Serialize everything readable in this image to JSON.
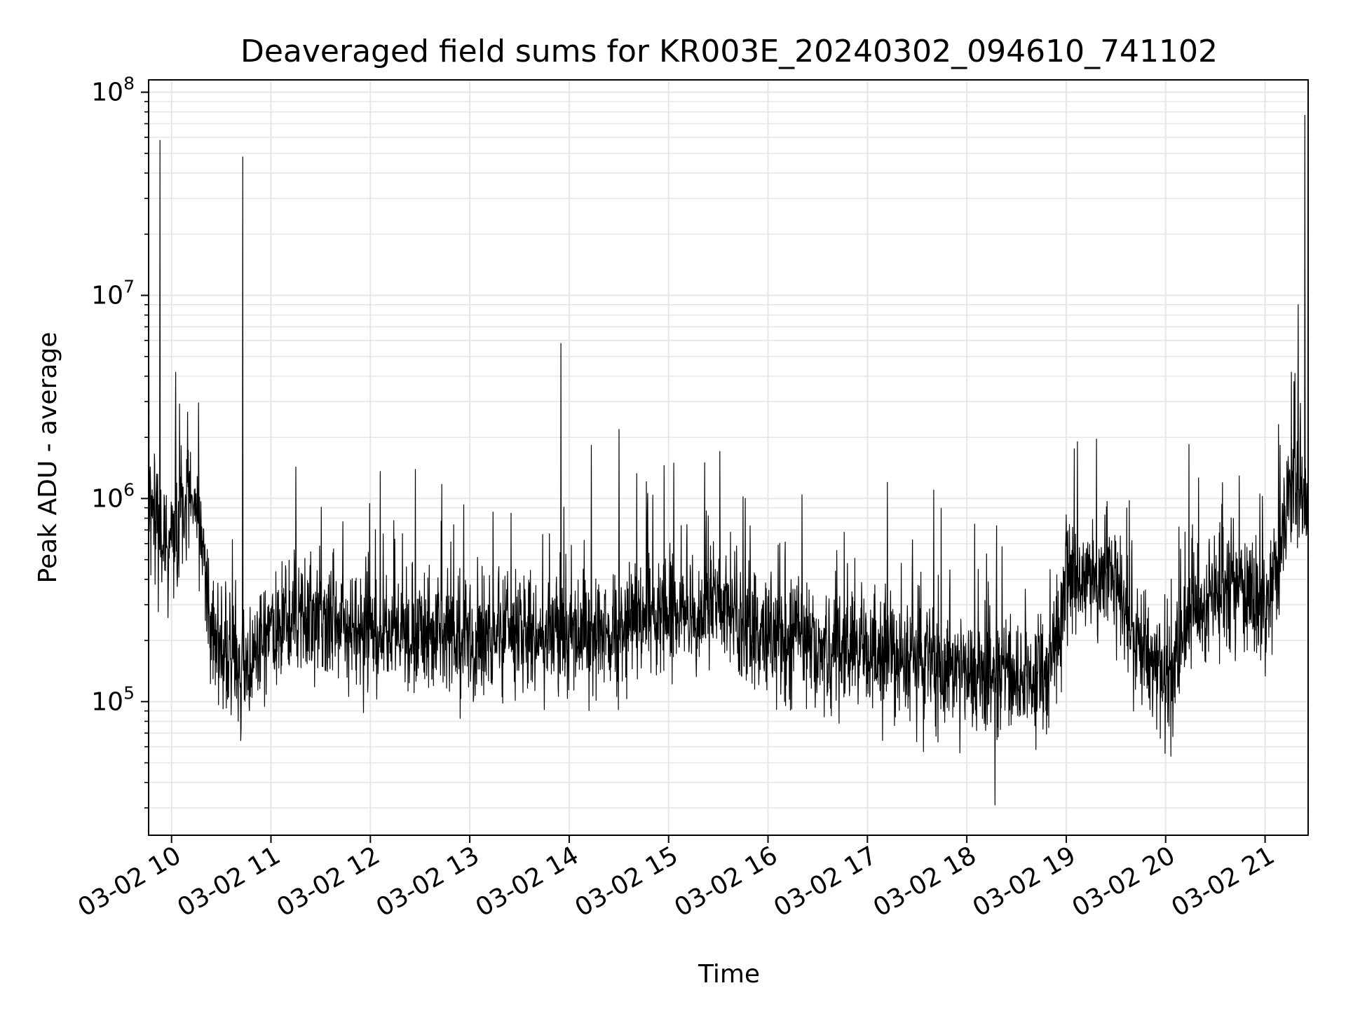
{
  "chart_data": {
    "type": "line",
    "title": "Deaveraged field sums for KR003E_20240302_094610_741102",
    "xlabel": "Time",
    "ylabel": "Peak ADU - average",
    "yscale": "log",
    "ylim": [
      22000,
      115000000
    ],
    "xlim": [
      "2024-03-02T09:46:10",
      "2024-03-02T21:26:00"
    ],
    "grid": true,
    "color": "#000000",
    "y_ticks": [
      {
        "value": 100000,
        "base": "10",
        "exp": "5"
      },
      {
        "value": 1000000,
        "base": "10",
        "exp": "6"
      },
      {
        "value": 10000000,
        "base": "10",
        "exp": "7"
      },
      {
        "value": 100000000,
        "base": "10",
        "exp": "8"
      }
    ],
    "x_ticks": [
      {
        "value": "2024-03-02T10:00:00",
        "label": "03-02 10"
      },
      {
        "value": "2024-03-02T11:00:00",
        "label": "03-02 11"
      },
      {
        "value": "2024-03-02T12:00:00",
        "label": "03-02 12"
      },
      {
        "value": "2024-03-02T13:00:00",
        "label": "03-02 13"
      },
      {
        "value": "2024-03-02T14:00:00",
        "label": "03-02 14"
      },
      {
        "value": "2024-03-02T15:00:00",
        "label": "03-02 15"
      },
      {
        "value": "2024-03-02T16:00:00",
        "label": "03-02 16"
      },
      {
        "value": "2024-03-02T17:00:00",
        "label": "03-02 17"
      },
      {
        "value": "2024-03-02T18:00:00",
        "label": "03-02 18"
      },
      {
        "value": "2024-03-02T19:00:00",
        "label": "03-02 19"
      },
      {
        "value": "2024-03-02T20:00:00",
        "label": "03-02 20"
      },
      {
        "value": "2024-03-02T21:00:00",
        "label": "03-02 21"
      }
    ],
    "baseline_trend": [
      {
        "x": "2024-03-02T09:46:10",
        "y": 1000000
      },
      {
        "x": "2024-03-02T09:55:00",
        "y": 550000
      },
      {
        "x": "2024-03-02T10:05:00",
        "y": 850000
      },
      {
        "x": "2024-03-02T10:12:00",
        "y": 1100000
      },
      {
        "x": "2024-03-02T10:20:00",
        "y": 500000
      },
      {
        "x": "2024-03-02T10:25:00",
        "y": 200000
      },
      {
        "x": "2024-03-02T10:45:00",
        "y": 150000
      },
      {
        "x": "2024-03-02T11:00:00",
        "y": 220000
      },
      {
        "x": "2024-03-02T11:30:00",
        "y": 260000
      },
      {
        "x": "2024-03-02T12:00:00",
        "y": 210000
      },
      {
        "x": "2024-03-02T13:00:00",
        "y": 200000
      },
      {
        "x": "2024-03-02T14:00:00",
        "y": 220000
      },
      {
        "x": "2024-03-02T15:00:00",
        "y": 260000
      },
      {
        "x": "2024-03-02T15:30:00",
        "y": 300000
      },
      {
        "x": "2024-03-02T16:00:00",
        "y": 200000
      },
      {
        "x": "2024-03-02T17:00:00",
        "y": 180000
      },
      {
        "x": "2024-03-02T18:00:00",
        "y": 130000
      },
      {
        "x": "2024-03-02T18:50:00",
        "y": 140000
      },
      {
        "x": "2024-03-02T19:00:00",
        "y": 350000
      },
      {
        "x": "2024-03-02T19:30:00",
        "y": 450000
      },
      {
        "x": "2024-03-02T19:40:00",
        "y": 200000
      },
      {
        "x": "2024-03-02T20:00:00",
        "y": 130000
      },
      {
        "x": "2024-03-02T20:15:00",
        "y": 250000
      },
      {
        "x": "2024-03-02T20:45:00",
        "y": 400000
      },
      {
        "x": "2024-03-02T21:00:00",
        "y": 250000
      },
      {
        "x": "2024-03-02T21:15:00",
        "y": 1200000
      },
      {
        "x": "2024-03-02T21:25:00",
        "y": 900000
      }
    ],
    "peaks": [
      {
        "x": "2024-03-02T09:53:00",
        "y": 58000000
      },
      {
        "x": "2024-03-02T10:43:00",
        "y": 48000000
      },
      {
        "x": "2024-03-02T13:55:00",
        "y": 5800000
      },
      {
        "x": "2024-03-02T17:40:00",
        "y": 1100000
      },
      {
        "x": "2024-03-02T21:20:00",
        "y": 9000000
      },
      {
        "x": "2024-03-02T21:24:00",
        "y": 77000000
      }
    ],
    "minimum": {
      "x": "2024-03-02T18:17:00",
      "y": 31000
    }
  }
}
